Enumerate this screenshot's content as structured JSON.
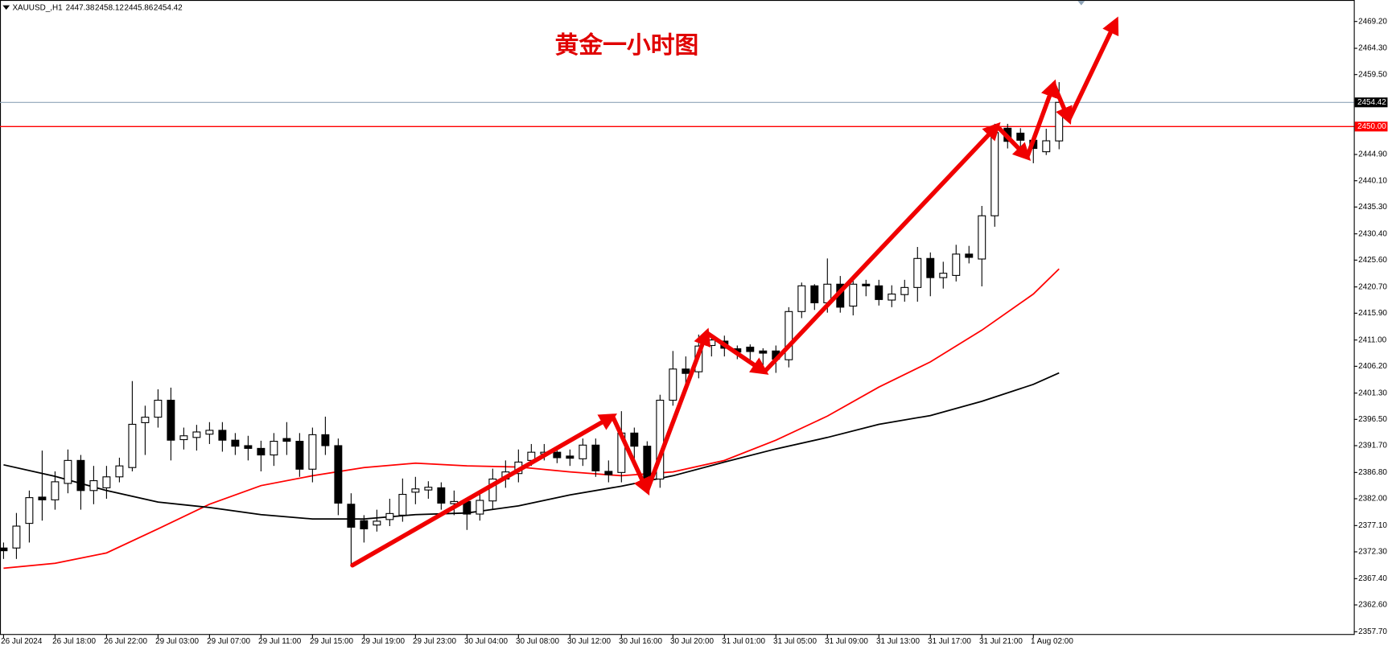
{
  "chart_data": {
    "type": "candlestick",
    "symbol": "XAUUSD_,H1",
    "title": "黄金一小时图",
    "categories": [
      "26 Jul 2024",
      null,
      null,
      null,
      "26 Jul 18:00",
      null,
      null,
      null,
      "26 Jul 22:00",
      null,
      null,
      null,
      "29 Jul 03:00",
      null,
      null,
      null,
      "29 Jul 07:00",
      null,
      null,
      null,
      "29 Jul 11:00",
      null,
      null,
      null,
      "29 Jul 15:00",
      null,
      null,
      null,
      "29 Jul 19:00",
      null,
      null,
      null,
      "29 Jul 23:00",
      null,
      null,
      null,
      "30 Jul 04:00",
      null,
      null,
      null,
      "30 Jul 08:00",
      null,
      null,
      null,
      "30 Jul 12:00",
      null,
      null,
      null,
      "30 Jul 16:00",
      null,
      null,
      null,
      "30 Jul 20:00",
      null,
      null,
      null,
      "31 Jul 01:00",
      null,
      null,
      null,
      "31 Jul 05:00",
      null,
      null,
      null,
      "31 Jul 09:00",
      null,
      null,
      null,
      "31 Jul 13:00",
      null,
      null,
      null,
      "31 Jul 17:00",
      null,
      null,
      null,
      "31 Jul 21:00",
      null,
      null,
      null,
      "1 Aug 02:00",
      null,
      null
    ],
    "open": [
      2373,
      2373,
      2377.5,
      2382.3,
      2381.8,
      2384.8,
      2389,
      2383.5,
      2384,
      2386,
      2387.7,
      2395.9,
      2396.9,
      2400,
      2392.8,
      2393.2,
      2393.8,
      2394.5,
      2392.7,
      2391.7,
      2391.2,
      2390,
      2393,
      2392.5,
      2387.4,
      2393.7,
      2391.7,
      2381,
      2378,
      2377.2,
      2378.2,
      2379,
      2383.2,
      2383.6,
      2384,
      2381.1,
      2381.5,
      2379.2,
      2381.6,
      2385.6,
      2386.6,
      2389,
      2390.2,
      2390.5,
      2389.8,
      2389.3,
      2391.8,
      2387,
      2386.8,
      2394,
      2391.6,
      2385.6,
      2400,
      2405.7,
      2405.2,
      2410,
      2410.8,
      2409.4,
      2409.7,
      2409,
      2409,
      2407.4,
      2416.2,
      2420.9,
      2417.8,
      2421.2,
      2417.2,
      2421.2,
      2420.9,
      2418.3,
      2419.3,
      2420.6,
      2425.9,
      2422.4,
      2422.8,
      2426.7,
      2425.8,
      2433.7,
      2449.7,
      2448.8,
      2447.5,
      2445.4,
      2447.38
    ],
    "high": [
      2374,
      2379.4,
      2383.5,
      2390.8,
      2387,
      2391,
      2390,
      2388,
      2388,
      2389.5,
      2403.5,
      2399,
      2402,
      2402.3,
      2395,
      2395.5,
      2396,
      2396,
      2394,
      2393.5,
      2392.6,
      2394,
      2396,
      2394,
      2395,
      2397,
      2393,
      2383,
      2379,
      2380,
      2382,
      2385.7,
      2386,
      2385.2,
      2385,
      2383.5,
      2382,
      2383,
      2387.5,
      2389,
      2391,
      2392,
      2392,
      2391.5,
      2391,
      2393,
      2393,
      2389,
      2398,
      2395,
      2392.5,
      2401,
      2409,
      2408,
      2412,
      2412,
      2411.8,
      2410,
      2410.2,
      2409.5,
      2410,
      2417,
      2421.5,
      2421.2,
      2425.9,
      2422.7,
      2422.5,
      2422,
      2422,
      2421,
      2422,
      2428,
      2427,
      2425.3,
      2428.4,
      2428.2,
      2435.5,
      2450.5,
      2450.5,
      2449.7,
      2448.4,
      2449.6,
      2458.12
    ],
    "low": [
      2371,
      2371,
      2374,
      2378,
      2380,
      2383,
      2380,
      2381,
      2382,
      2385,
      2387,
      2390,
      2395,
      2389,
      2391,
      2390.8,
      2392,
      2390.6,
      2390,
      2389,
      2387,
      2388,
      2390,
      2386,
      2385,
      2390,
      2379,
      2369.8,
      2374,
      2376,
      2377,
      2377.8,
      2381,
      2382,
      2380,
      2379,
      2376.3,
      2378,
      2380,
      2384,
      2385,
      2388,
      2389,
      2388.5,
      2388,
      2388,
      2386,
      2385,
      2385,
      2389,
      2383,
      2384,
      2399,
      2403,
      2404,
      2408,
      2408,
      2407.5,
      2407,
      2406,
      2405,
      2406,
      2415,
      2416.5,
      2416,
      2416,
      2415.5,
      2419,
      2417.3,
      2417,
      2418,
      2418,
      2419,
      2420.4,
      2421.7,
      2425,
      2420.8,
      2431.7,
      2446,
      2446.2,
      2443.3,
      2444.8,
      2445.86
    ],
    "close": [
      2372.5,
      2377,
      2382.2,
      2381.8,
      2385.1,
      2389,
      2383.5,
      2385.3,
      2386,
      2388,
      2395.6,
      2396.9,
      2400,
      2392.7,
      2393.5,
      2394.2,
      2394.5,
      2392.7,
      2391.6,
      2391.2,
      2390,
      2392.5,
      2392.5,
      2387.4,
      2393.7,
      2391.7,
      2381.2,
      2376.8,
      2376.5,
      2377.9,
      2379.3,
      2382.8,
      2383.8,
      2384.1,
      2381.2,
      2381.5,
      2379.2,
      2381.7,
      2385.6,
      2386.9,
      2388.7,
      2390.5,
      2390.5,
      2389.5,
      2389.4,
      2391.8,
      2387.1,
      2386.4,
      2394,
      2391.6,
      2385.6,
      2400,
      2405.7,
      2404.9,
      2409.9,
      2411,
      2409.5,
      2408.8,
      2408.9,
      2408.6,
      2407.5,
      2416.2,
      2420.9,
      2417.8,
      2421.2,
      2417,
      2421.2,
      2420.9,
      2418.4,
      2419.4,
      2420.6,
      2425.9,
      2422.4,
      2423.2,
      2426.7,
      2426.1,
      2433.7,
      2448.9,
      2447.3,
      2447.5,
      2446,
      2447.4,
      2454.42
    ],
    "up_color": "#ffffff",
    "down_color": "#000000",
    "moving_averages": [
      {
        "color": "#ff0000",
        "x": [
          0,
          4,
          8,
          12,
          16,
          20,
          24,
          28,
          32,
          36,
          40,
          44,
          48,
          52,
          56,
          60,
          64,
          68,
          72,
          76,
          80,
          82
        ],
        "values": [
          2369.3,
          2370.2,
          2372.1,
          2376.5,
          2381.0,
          2384.4,
          2386.2,
          2387.7,
          2388.5,
          2388.0,
          2387.8,
          2386.9,
          2386.2,
          2386.9,
          2389.0,
          2392.7,
          2397.1,
          2402.4,
          2407.0,
          2412.8,
          2419.4,
          2424.0
        ]
      },
      {
        "color": "#000000",
        "x": [
          0,
          4,
          8,
          12,
          16,
          20,
          24,
          28,
          32,
          36,
          40,
          44,
          48,
          52,
          56,
          60,
          64,
          68,
          72,
          76,
          80,
          82
        ],
        "values": [
          2388.2,
          2386.1,
          2383.5,
          2381.4,
          2380.4,
          2379.1,
          2378.3,
          2378.3,
          2379.1,
          2379.4,
          2380.7,
          2382.7,
          2384.3,
          2386.2,
          2388.7,
          2391.1,
          2393.2,
          2395.6,
          2397.2,
          2399.8,
          2402.9,
          2405.0
        ]
      }
    ],
    "levels": [
      {
        "value": 2450,
        "label": "2450.00",
        "color": "#ff0000"
      }
    ],
    "price_line_color": "#8fa4b8",
    "ylim": [
      2357.2,
      2472.8
    ],
    "yticks": [
      {
        "value": 2357.7,
        "label": "2357.70"
      },
      {
        "value": 2362.6,
        "label": "2362.60"
      },
      {
        "value": 2367.4,
        "label": "2367.40"
      },
      {
        "value": 2372.3,
        "label": "2372.30"
      },
      {
        "value": 2377.1,
        "label": "2377.10"
      },
      {
        "value": 2382,
        "label": "2382.00"
      },
      {
        "value": 2386.8,
        "label": "2386.80"
      },
      {
        "value": 2391.7,
        "label": "2391.70"
      },
      {
        "value": 2396.5,
        "label": "2396.50"
      },
      {
        "value": 2401.3,
        "label": "2401.30"
      },
      {
        "value": 2406.2,
        "label": "2406.20"
      },
      {
        "value": 2411,
        "label": "2411.00"
      },
      {
        "value": 2415.9,
        "label": "2415.90"
      },
      {
        "value": 2420.7,
        "label": "2420.70"
      },
      {
        "value": 2425.6,
        "label": "2425.60"
      },
      {
        "value": 2430.4,
        "label": "2430.40"
      },
      {
        "value": 2435.3,
        "label": "2435.30"
      },
      {
        "value": 2440.1,
        "label": "2440.10"
      },
      {
        "value": 2444.9,
        "label": "2444.90"
      },
      {
        "value": 2459.5,
        "label": "2459.50"
      },
      {
        "value": 2464.3,
        "label": "2464.30"
      },
      {
        "value": 2469.2,
        "label": "2469.20"
      }
    ],
    "grid": false
  }
}
